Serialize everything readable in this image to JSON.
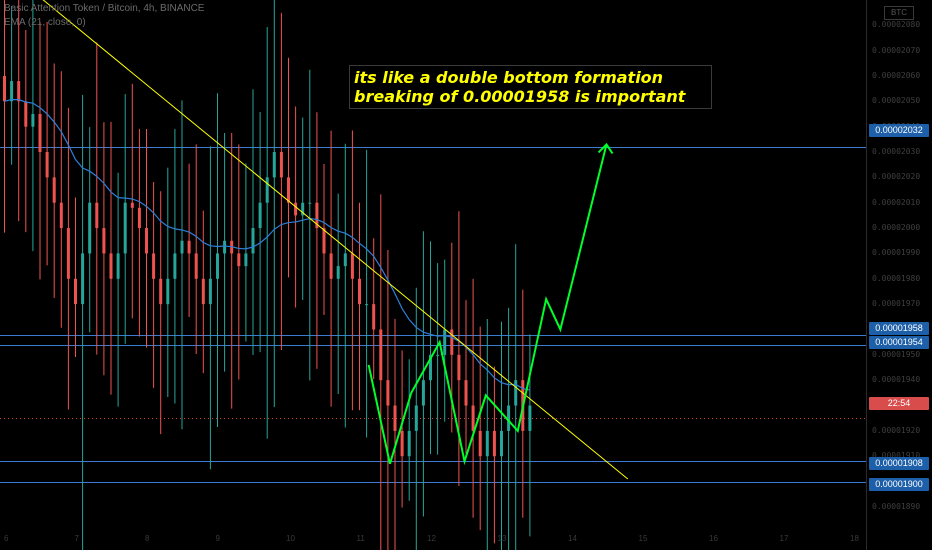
{
  "header": {
    "symbol": "Basic Attention Token / Bitcoin, 4h, BINANCE",
    "indicator": "EMA (21, close, 0)"
  },
  "currency": "BTC",
  "annotation": {
    "line1": "its like a double bottom formation",
    "line2": "breaking of 0.00001958 is important"
  },
  "colors": {
    "up": "#26a69a",
    "down": "#ef5350",
    "ema": "#2e7fd8",
    "level_line": "#3b7bd0",
    "trendline": "#ffff00",
    "pattern": "#00ff2a",
    "annotation_text": "#ffff00",
    "background": "#000000"
  },
  "chart_data": {
    "type": "candlestick",
    "y_ticks": [
      "0.00002080",
      "0.00002070",
      "0.00002060",
      "0.00002050",
      "0.00002040",
      "0.00002030",
      "0.00002020",
      "0.00002010",
      "0.00002000",
      "0.00001990",
      "0.00001980",
      "0.00001970",
      "0.00001960",
      "0.00001950",
      "0.00001940",
      "0.00001930",
      "0.00001920",
      "0.00001910",
      "0.00001900",
      "0.00001890"
    ],
    "x_ticks": [
      "6",
      "7",
      "8",
      "9",
      "10",
      "11",
      "12",
      "13",
      "14",
      "15",
      "16",
      "17",
      "18"
    ],
    "horizontal_levels": [
      "0.00002032",
      "0.00001958",
      "0.00001954",
      "0.00001908",
      "0.00001900"
    ],
    "current_price_badge": "22:54",
    "current_price": 1.925e-05,
    "ylim": [
      1.888e-05,
      2.088e-05
    ],
    "candle_path": [
      2.05e-05,
      2.058e-05,
      2.05e-05,
      2.04e-05,
      2.045e-05,
      2.03e-05,
      2.02e-05,
      2.01e-05,
      2e-05,
      1.98e-05,
      1.97e-05,
      1.99e-05,
      2.01e-05,
      2e-05,
      1.99e-05,
      1.98e-05,
      1.99e-05,
      2.01e-05,
      2.008e-05,
      2e-05,
      1.99e-05,
      1.98e-05,
      1.97e-05,
      1.98e-05,
      1.99e-05,
      1.995e-05,
      1.99e-05,
      1.98e-05,
      1.97e-05,
      1.98e-05,
      1.99e-05,
      1.995e-05,
      1.99e-05,
      1.985e-05,
      1.99e-05,
      2e-05,
      2.01e-05,
      2.02e-05,
      2.03e-05,
      2.02e-05,
      2.01e-05,
      2.005e-05,
      2.01e-05,
      2.01e-05,
      2e-05,
      1.99e-05,
      1.98e-05,
      1.985e-05,
      1.99e-05,
      1.98e-05,
      1.97e-05,
      1.97e-05,
      1.96e-05,
      1.94e-05,
      1.93e-05,
      1.92e-05,
      1.91e-05,
      1.92e-05,
      1.93e-05,
      1.94e-05,
      1.95e-05,
      1.95e-05,
      1.96e-05,
      1.95e-05,
      1.94e-05,
      1.93e-05,
      1.92e-05,
      1.91e-05,
      1.92e-05,
      1.91e-05,
      1.92e-05,
      1.93e-05,
      1.94e-05,
      1.92e-05,
      1.93e-05
    ],
    "trendline": {
      "from": {
        "x": 0,
        "y": 2.103e-05
      },
      "to": {
        "x": 88,
        "y": 1.901e-05
      }
    },
    "pattern_path": [
      {
        "x": 51.5,
        "y": 1.946e-05
      },
      {
        "x": 54.5,
        "y": 1.907e-05
      },
      {
        "x": 57.5,
        "y": 1.935e-05
      },
      {
        "x": 61.5,
        "y": 1.955e-05
      },
      {
        "x": 65,
        "y": 1.908e-05
      },
      {
        "x": 68,
        "y": 1.934e-05
      },
      {
        "x": 72.5,
        "y": 1.92e-05
      },
      {
        "x": 76.5,
        "y": 1.972e-05
      },
      {
        "x": 78.5,
        "y": 1.96e-05
      },
      {
        "x": 85,
        "y": 2.033e-05
      }
    ],
    "ema_period": 21
  }
}
